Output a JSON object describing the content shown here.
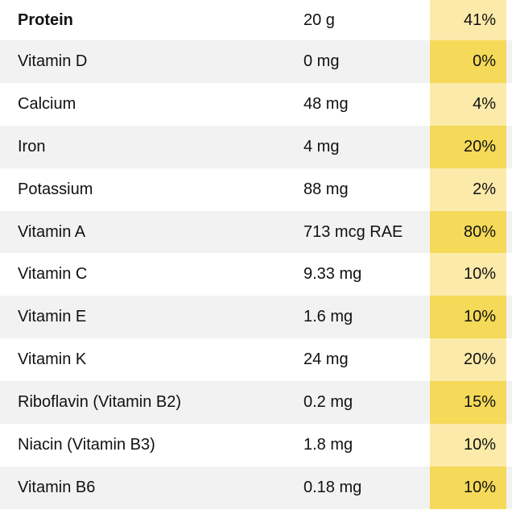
{
  "nutrients": [
    {
      "name": "Protein",
      "amount": "20 g",
      "dv": "41%"
    },
    {
      "name": "Vitamin D",
      "amount": "0 mg",
      "dv": "0%"
    },
    {
      "name": "Calcium",
      "amount": "48 mg",
      "dv": "4%"
    },
    {
      "name": "Iron",
      "amount": "4 mg",
      "dv": "20%"
    },
    {
      "name": "Potassium",
      "amount": "88 mg",
      "dv": "2%"
    },
    {
      "name": "Vitamin A",
      "amount": "713 mcg RAE",
      "dv": "80%"
    },
    {
      "name": "Vitamin C",
      "amount": "9.33 mg",
      "dv": "10%"
    },
    {
      "name": "Vitamin E",
      "amount": "1.6 mg",
      "dv": "10%"
    },
    {
      "name": "Vitamin K",
      "amount": "24 mg",
      "dv": "20%"
    },
    {
      "name": "Riboflavin (Vitamin B2)",
      "amount": "0.2 mg",
      "dv": "15%"
    },
    {
      "name": "Niacin (Vitamin B3)",
      "amount": "1.8 mg",
      "dv": "10%"
    },
    {
      "name": "Vitamin B6",
      "amount": "0.18 mg",
      "dv": "10%"
    }
  ],
  "colors": {
    "dv_light": "#fbeaa9",
    "dv_dark": "#f5d959",
    "row_alt": "#f2f2f2"
  }
}
